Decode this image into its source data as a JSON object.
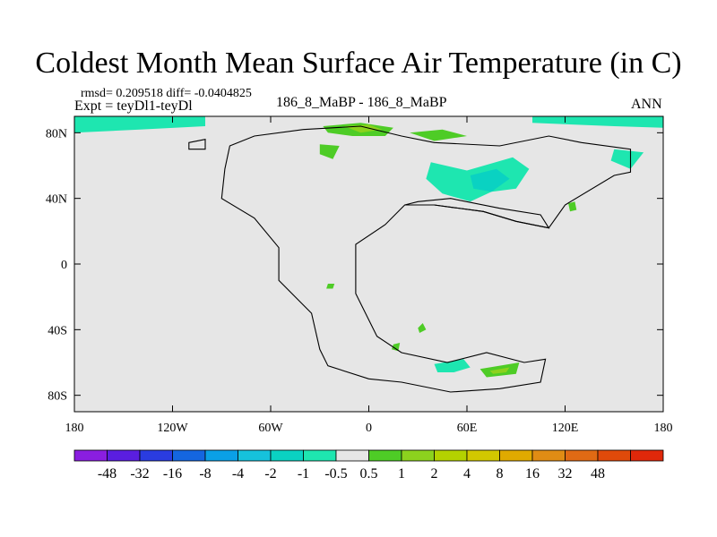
{
  "chart_data": {
    "type": "heatmap",
    "title": "Coldest Month Mean Surface Air Temperature (in C)",
    "stats": "rmsd= 0.209518  diff= -0.0404825",
    "experiment": "Expt = teyDl1-teyDl",
    "case": "186_8_MaBP - 186_8_MaBP",
    "season": "ANN",
    "x_ticks": [
      {
        "value": -180,
        "label": "180"
      },
      {
        "value": -120,
        "label": "120W"
      },
      {
        "value": -60,
        "label": "60W"
      },
      {
        "value": 0,
        "label": "0"
      },
      {
        "value": 60,
        "label": "60E"
      },
      {
        "value": 120,
        "label": "120E"
      },
      {
        "value": 180,
        "label": "180"
      }
    ],
    "y_ticks": [
      {
        "value": 80,
        "label": "80N"
      },
      {
        "value": 40,
        "label": "40N"
      },
      {
        "value": 0,
        "label": "0"
      },
      {
        "value": -40,
        "label": "40S"
      },
      {
        "value": -80,
        "label": "80S"
      }
    ],
    "xlim": [
      -180,
      180
    ],
    "ylim": [
      -90,
      90
    ],
    "colorbar": {
      "colors": [
        "#8a1ee0",
        "#5a1ee0",
        "#2a3ce0",
        "#1466e0",
        "#0aa0e6",
        "#16c2dc",
        "#0ad2c2",
        "#1ee6b0",
        "#e6e6e6",
        "#4ecc26",
        "#8cd21e",
        "#b4d200",
        "#d2c800",
        "#e0aa00",
        "#e08c14",
        "#e06a14",
        "#e04a0a",
        "#e0280a"
      ],
      "labels": [
        "-48",
        "-32",
        "-16",
        "-8",
        "-4",
        "-2",
        "-1",
        "-0.5",
        "0.5",
        "1",
        "2",
        "4",
        "8",
        "16",
        "32",
        "48"
      ]
    },
    "anomaly_regions": [
      {
        "name": "arctic-band-west",
        "level": "-1",
        "points": [
          [
            -180,
            90
          ],
          [
            -100,
            90
          ],
          [
            -100,
            84
          ],
          [
            -140,
            82
          ],
          [
            -180,
            80
          ]
        ]
      },
      {
        "name": "arctic-band-east",
        "level": "-1",
        "points": [
          [
            100,
            90
          ],
          [
            180,
            90
          ],
          [
            180,
            83
          ],
          [
            150,
            84
          ],
          [
            100,
            86
          ]
        ]
      },
      {
        "name": "greenland-warm",
        "level": "1",
        "points": [
          [
            -28,
            84
          ],
          [
            -5,
            86
          ],
          [
            15,
            83
          ],
          [
            10,
            78
          ],
          [
            -10,
            78
          ],
          [
            -25,
            80
          ]
        ]
      },
      {
        "name": "greenland-core",
        "level": "2",
        "points": [
          [
            -15,
            84
          ],
          [
            0,
            85
          ],
          [
            8,
            82
          ],
          [
            -5,
            80
          ]
        ]
      },
      {
        "name": "labrador-warm",
        "level": "1",
        "points": [
          [
            -30,
            73
          ],
          [
            -18,
            72
          ],
          [
            -22,
            64
          ],
          [
            -30,
            67
          ]
        ]
      },
      {
        "name": "siberia-cool",
        "level": "-1",
        "points": [
          [
            38,
            62
          ],
          [
            60,
            57
          ],
          [
            88,
            65
          ],
          [
            98,
            58
          ],
          [
            90,
            46
          ],
          [
            75,
            44
          ],
          [
            62,
            38
          ],
          [
            45,
            43
          ],
          [
            35,
            52
          ]
        ]
      },
      {
        "name": "siberia-core",
        "level": "-2",
        "points": [
          [
            62,
            54
          ],
          [
            78,
            58
          ],
          [
            86,
            52
          ],
          [
            75,
            44
          ],
          [
            64,
            46
          ]
        ]
      },
      {
        "name": "arctic-warm-east",
        "level": "1",
        "points": [
          [
            25,
            80
          ],
          [
            45,
            82
          ],
          [
            60,
            78
          ],
          [
            40,
            75
          ]
        ]
      },
      {
        "name": "kamchatka-cool",
        "level": "-1",
        "points": [
          [
            150,
            70
          ],
          [
            168,
            68
          ],
          [
            160,
            58
          ],
          [
            148,
            63
          ]
        ]
      },
      {
        "name": "asia-warm-dot",
        "level": "1",
        "points": [
          [
            122,
            37
          ],
          [
            126,
            38
          ],
          [
            127,
            33
          ],
          [
            123,
            32
          ]
        ]
      },
      {
        "name": "africa-warm-dot",
        "level": "1",
        "points": [
          [
            -25,
            -12
          ],
          [
            -21,
            -12
          ],
          [
            -22,
            -15
          ],
          [
            -26,
            -15
          ]
        ]
      },
      {
        "name": "africa-warm-dot2",
        "level": "1",
        "points": [
          [
            30,
            -39
          ],
          [
            33,
            -36
          ],
          [
            35,
            -40
          ],
          [
            31,
            -42
          ]
        ]
      },
      {
        "name": "africa-warm-dot3",
        "level": "1",
        "points": [
          [
            15,
            -49
          ],
          [
            19,
            -48
          ],
          [
            18,
            -53
          ],
          [
            14,
            -52
          ]
        ]
      },
      {
        "name": "antarctic-cool",
        "level": "-1",
        "points": [
          [
            40,
            -61
          ],
          [
            58,
            -58
          ],
          [
            62,
            -63
          ],
          [
            52,
            -66
          ],
          [
            42,
            -66
          ]
        ]
      },
      {
        "name": "antarctic-warm",
        "level": "1",
        "points": [
          [
            68,
            -64
          ],
          [
            92,
            -60
          ],
          [
            90,
            -67
          ],
          [
            72,
            -69
          ]
        ]
      },
      {
        "name": "antarctic-core",
        "level": "2",
        "points": [
          [
            74,
            -65
          ],
          [
            86,
            -63
          ],
          [
            84,
            -66
          ],
          [
            76,
            -67
          ]
        ]
      }
    ],
    "coastlines": [
      {
        "name": "pangaea-outline",
        "points": [
          [
            -85,
            72
          ],
          [
            -70,
            78
          ],
          [
            -40,
            82
          ],
          [
            -5,
            84
          ],
          [
            20,
            78
          ],
          [
            40,
            74
          ],
          [
            80,
            72
          ],
          [
            110,
            78
          ],
          [
            130,
            74
          ],
          [
            160,
            70
          ],
          [
            160,
            56
          ],
          [
            150,
            54
          ],
          [
            120,
            36
          ],
          [
            110,
            22
          ],
          [
            90,
            26
          ],
          [
            70,
            32
          ],
          [
            40,
            36
          ],
          [
            22,
            36
          ],
          [
            10,
            24
          ],
          [
            -8,
            12
          ],
          [
            -8,
            -18
          ],
          [
            5,
            -44
          ],
          [
            20,
            -54
          ],
          [
            48,
            -60
          ],
          [
            72,
            -54
          ],
          [
            95,
            -60
          ],
          [
            108,
            -58
          ],
          [
            105,
            -72
          ],
          [
            80,
            -76
          ],
          [
            50,
            -78
          ],
          [
            20,
            -72
          ],
          [
            0,
            -70
          ],
          [
            -25,
            -62
          ],
          [
            -30,
            -52
          ],
          [
            -35,
            -30
          ],
          [
            -55,
            -10
          ],
          [
            -55,
            10
          ],
          [
            -70,
            28
          ],
          [
            -90,
            40
          ],
          [
            -88,
            58
          ]
        ]
      },
      {
        "name": "tethys-inner",
        "points": [
          [
            22,
            36
          ],
          [
            40,
            36
          ],
          [
            70,
            32
          ],
          [
            90,
            26
          ],
          [
            110,
            22
          ],
          [
            105,
            30
          ],
          [
            80,
            34
          ],
          [
            50,
            40
          ],
          [
            30,
            38
          ]
        ]
      },
      {
        "name": "island-west",
        "points": [
          [
            -110,
            74
          ],
          [
            -100,
            76
          ],
          [
            -100,
            70
          ],
          [
            -110,
            70
          ]
        ]
      }
    ]
  }
}
